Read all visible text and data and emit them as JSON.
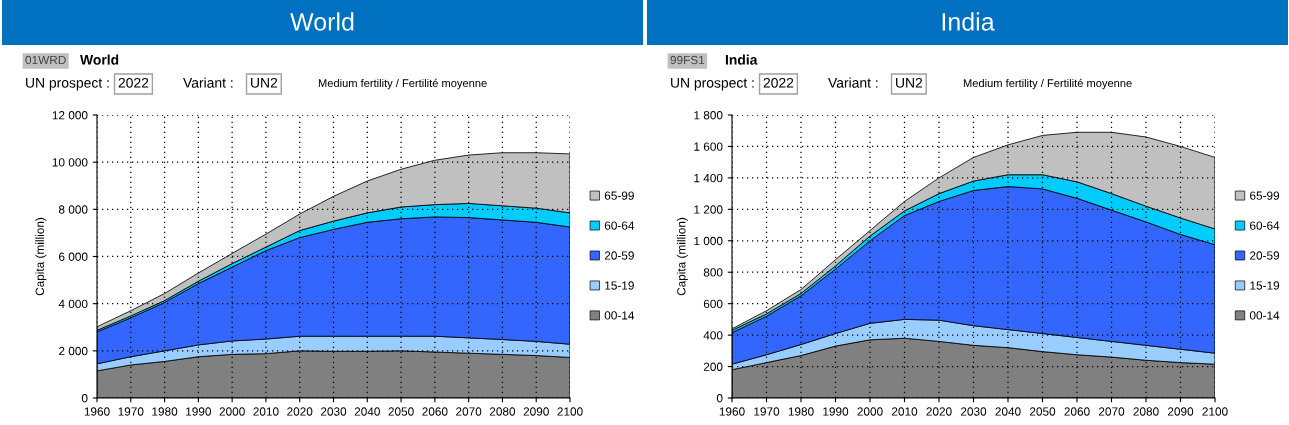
{
  "chart_data": [
    {
      "type": "area",
      "stacked": true,
      "title": "World",
      "subtitle": "World",
      "ylabel": "Capita (million)",
      "annotations": [
        "01WRD",
        "UN prospect :",
        "2022",
        "Variant :",
        "UN2",
        "Medium fertility / Fertilité moyenne"
      ],
      "x": [
        1960,
        1970,
        1980,
        1990,
        2000,
        2010,
        2020,
        2030,
        2040,
        2050,
        2060,
        2070,
        2080,
        2090,
        2100
      ],
      "series": [
        {
          "name": "00-14",
          "color": "#808080",
          "values": [
            1150,
            1400,
            1550,
            1750,
            1850,
            1880,
            2000,
            1980,
            1980,
            2000,
            1950,
            1900,
            1850,
            1800,
            1720
          ]
        },
        {
          "name": "15-19",
          "color": "#99ccff",
          "values": [
            300,
            350,
            450,
            500,
            570,
            620,
            620,
            640,
            640,
            620,
            670,
            650,
            630,
            600,
            560
          ]
        },
        {
          "name": "20-59",
          "color": "#3366ff",
          "values": [
            1350,
            1650,
            2050,
            2600,
            3130,
            3750,
            4180,
            4530,
            4830,
            4980,
            5060,
            5100,
            5070,
            5050,
            4970
          ]
        },
        {
          "name": "60-64",
          "color": "#00ccff",
          "values": [
            70,
            80,
            80,
            100,
            150,
            150,
            300,
            350,
            400,
            500,
            520,
            600,
            600,
            600,
            600
          ]
        },
        {
          "name": "65-99",
          "color": "#c0c0c0",
          "values": [
            150,
            220,
            300,
            350,
            430,
            550,
            700,
            1050,
            1350,
            1600,
            1880,
            2050,
            2250,
            2350,
            2500
          ]
        }
      ],
      "xlim": [
        1960,
        2100
      ],
      "xticks": [
        1960,
        1970,
        1980,
        1990,
        2000,
        2010,
        2020,
        2030,
        2040,
        2050,
        2060,
        2070,
        2080,
        2090,
        2100
      ],
      "ylim": [
        0,
        12000
      ],
      "yticks": [
        0,
        {
          "value": 2000,
          "label": "2 000"
        },
        {
          "value": 4000,
          "label": "4 000"
        },
        {
          "value": 6000,
          "label": "6 000"
        },
        {
          "value": 8000,
          "label": "8 000"
        },
        {
          "value": 10000,
          "label": "10 000"
        },
        {
          "value": 12000,
          "label": "12 000"
        }
      ],
      "grid": true,
      "legend": "right"
    },
    {
      "type": "area",
      "stacked": true,
      "title": "India",
      "subtitle": "India",
      "ylabel": "Capita (million)",
      "annotations": [
        "99FS1",
        "UN prospect :",
        "2022",
        "Variant :",
        "UN2",
        "Medium fertility / Fertilité moyenne"
      ],
      "x": [
        1960,
        1970,
        1980,
        1990,
        2000,
        2010,
        2020,
        2030,
        2040,
        2050,
        2060,
        2070,
        2080,
        2090,
        2100
      ],
      "series": [
        {
          "name": "00-14",
          "color": "#808080",
          "values": [
            180,
            225,
            270,
            330,
            370,
            380,
            360,
            335,
            320,
            295,
            275,
            260,
            240,
            225,
            215
          ]
        },
        {
          "name": "15-19",
          "color": "#99ccff",
          "values": [
            35,
            50,
            70,
            80,
            105,
            120,
            135,
            125,
            115,
            115,
            110,
            100,
            95,
            85,
            70
          ]
        },
        {
          "name": "20-59",
          "color": "#3366ff",
          "values": [
            200,
            245,
            310,
            410,
            525,
            660,
            755,
            860,
            910,
            920,
            885,
            835,
            785,
            730,
            690
          ]
        },
        {
          "name": "60-64",
          "color": "#00ccff",
          "values": [
            15,
            15,
            15,
            20,
            30,
            30,
            50,
            60,
            75,
            90,
            105,
            105,
            100,
            105,
            100
          ]
        },
        {
          "name": "65-99",
          "color": "#c0c0c0",
          "values": [
            10,
            20,
            25,
            40,
            35,
            60,
            100,
            150,
            190,
            250,
            315,
            390,
            440,
            455,
            455
          ]
        }
      ],
      "xlim": [
        1960,
        2100
      ],
      "xticks": [
        1960,
        1970,
        1980,
        1990,
        2000,
        2010,
        2020,
        2030,
        2040,
        2050,
        2060,
        2070,
        2080,
        2090,
        2100
      ],
      "ylim": [
        0,
        1800
      ],
      "yticks": [
        0,
        200,
        400,
        600,
        800,
        {
          "value": 1000,
          "label": "1 000"
        },
        {
          "value": 1200,
          "label": "1 200"
        },
        {
          "value": 1400,
          "label": "1 400"
        },
        {
          "value": 1600,
          "label": "1 600"
        },
        {
          "value": 1800,
          "label": "1 800"
        }
      ],
      "grid": true,
      "legend": "right"
    }
  ]
}
